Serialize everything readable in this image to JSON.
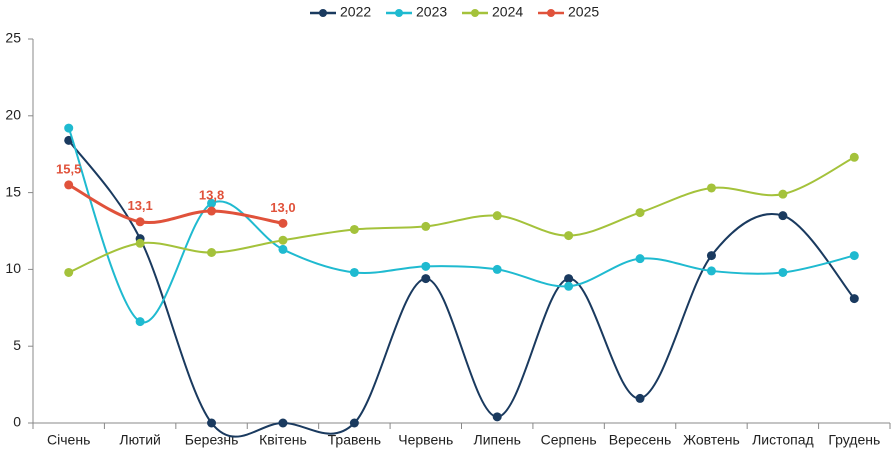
{
  "chart_data": {
    "type": "line",
    "categories": [
      "Січень",
      "Лютий",
      "Березнь",
      "Квітень",
      "Травень",
      "Червень",
      "Липень",
      "Серпень",
      "Вересень",
      "Жовтень",
      "Листопад",
      "Грудень"
    ],
    "series": [
      {
        "name": "2022",
        "color": "#1a3a5f",
        "values": [
          18.4,
          12.0,
          0,
          0,
          0,
          9.4,
          0.4,
          9.4,
          1.6,
          10.9,
          13.5,
          8.1
        ]
      },
      {
        "name": "2023",
        "color": "#1fbad0",
        "values": [
          19.2,
          6.6,
          14.3,
          11.3,
          9.8,
          10.2,
          10.0,
          8.9,
          10.7,
          9.9,
          9.8,
          10.9
        ]
      },
      {
        "name": "2024",
        "color": "#a4c23b",
        "values": [
          9.8,
          11.7,
          11.1,
          11.9,
          12.6,
          12.8,
          13.5,
          12.2,
          13.7,
          15.3,
          14.9,
          17.3
        ]
      },
      {
        "name": "2025",
        "color": "#e0523b",
        "values": [
          15.5,
          13.1,
          13.8,
          13.0,
          null,
          null,
          null,
          null,
          null,
          null,
          null,
          null
        ],
        "value_labels": [
          "15,5",
          "13,1",
          "13,8",
          "13,0",
          null,
          null,
          null,
          null,
          null,
          null,
          null,
          null
        ]
      }
    ],
    "ylim": [
      0,
      25
    ],
    "yticks": [
      0,
      5,
      10,
      15,
      20,
      25
    ],
    "smooth": true,
    "legend": "top"
  }
}
